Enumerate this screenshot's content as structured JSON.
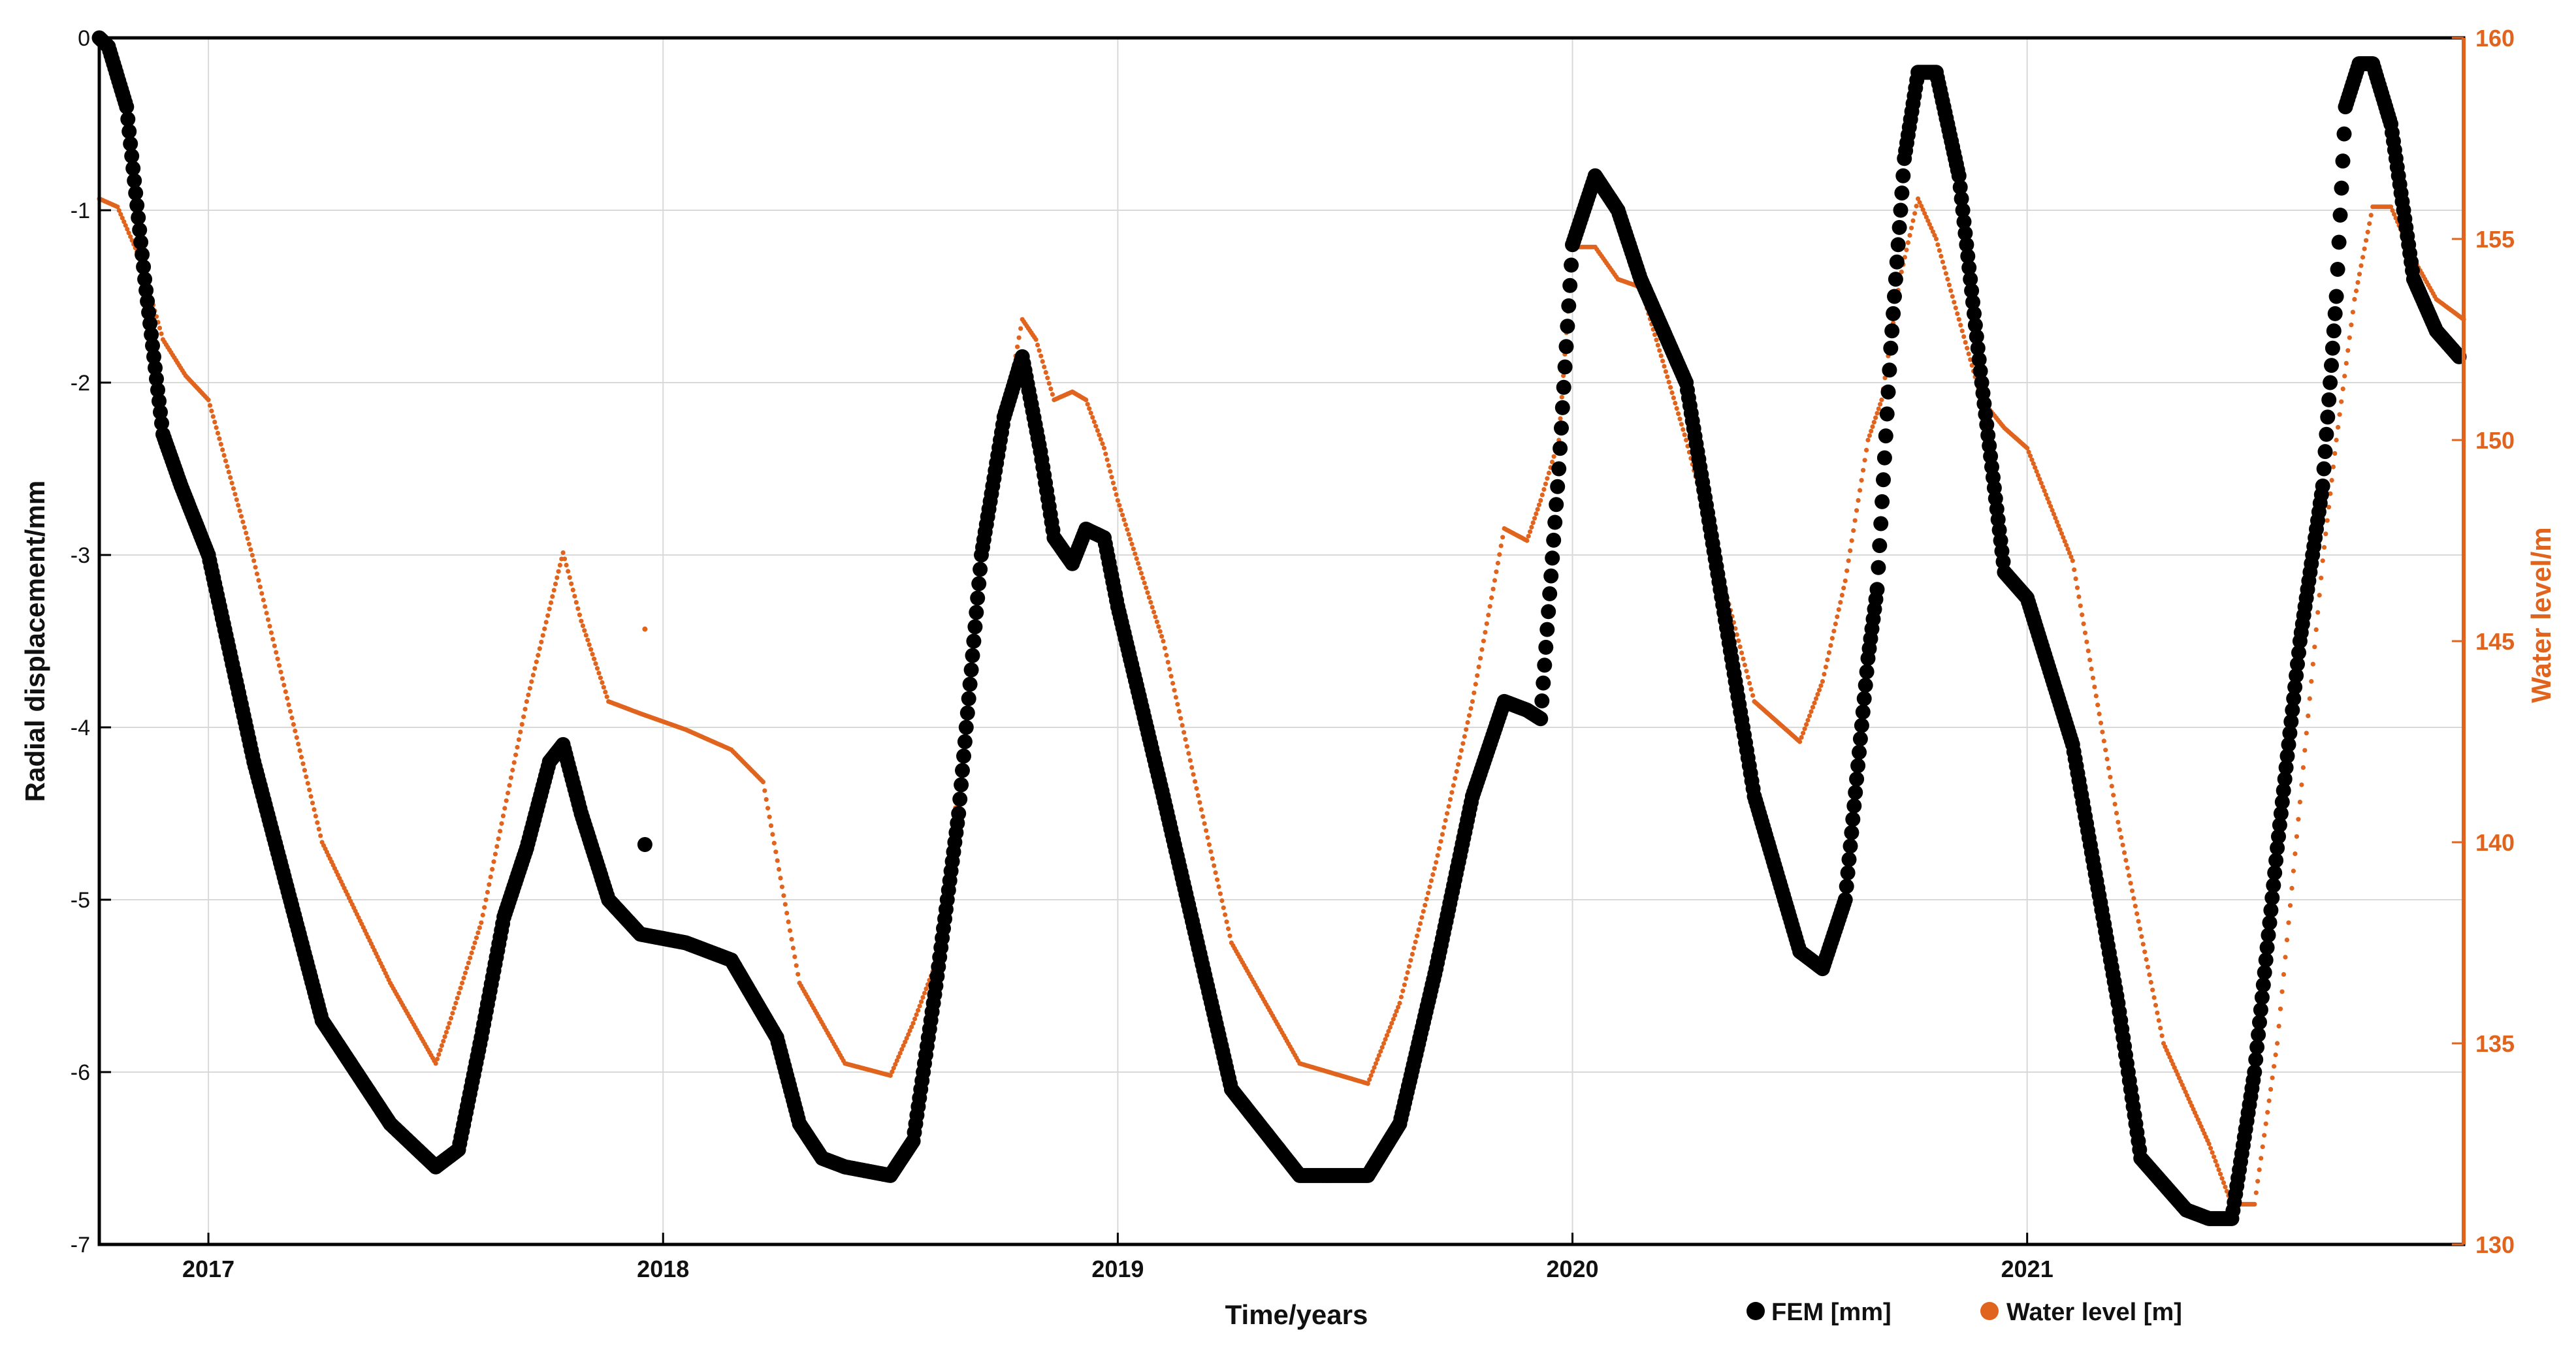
{
  "chart_data": {
    "type": "scatter",
    "title": "",
    "xlabel": "Time/years",
    "ylabel": "Radial displacement/mm",
    "ylabel_right": "Water level/m",
    "xlim": [
      2016.76,
      2021.96
    ],
    "ylim": [
      -7,
      0
    ],
    "ylim_right": [
      130,
      160
    ],
    "x_ticks": [
      2017,
      2018,
      2019,
      2020,
      2021
    ],
    "x_tick_labels": [
      "2017",
      "2018",
      "2019",
      "2020",
      "2021"
    ],
    "y_ticks": [
      0,
      -1,
      -2,
      -3,
      -4,
      -5,
      -6,
      -7
    ],
    "y_tick_labels": [
      "0",
      "-1",
      "-2",
      "-3",
      "-4",
      "-5",
      "-6",
      "-7"
    ],
    "y_right_ticks": [
      160,
      155,
      150,
      145,
      140,
      135,
      130
    ],
    "y_right_tick_labels": [
      "160",
      "155",
      "150",
      "145",
      "140",
      "135",
      "130"
    ],
    "grid": true,
    "legend_position": "bottom-right",
    "colors": {
      "fem": "#000000",
      "water": "#e0641e",
      "axis": "#000000",
      "grid": "#d9d9d9"
    },
    "series": [
      {
        "name": "FEM [mm]",
        "axis": "left",
        "marker": "large-dot",
        "x": [
          2016.76,
          2016.78,
          2016.82,
          2016.86,
          2016.9,
          2016.94,
          2017.0,
          2017.1,
          2017.25,
          2017.4,
          2017.5,
          2017.55,
          2017.6,
          2017.65,
          2017.7,
          2017.75,
          2017.78,
          2017.82,
          2017.88,
          2017.95,
          2018.05,
          2018.15,
          2018.25,
          2018.3,
          2018.35,
          2018.4,
          2018.5,
          2018.55,
          2018.6,
          2018.65,
          2018.7,
          2018.75,
          2018.79,
          2018.83,
          2018.86,
          2018.9,
          2018.93,
          2018.97,
          2019.0,
          2019.1,
          2019.25,
          2019.4,
          2019.55,
          2019.62,
          2019.7,
          2019.78,
          2019.85,
          2019.9,
          2019.93,
          2019.97,
          2020.0,
          2020.05,
          2020.1,
          2020.15,
          2020.25,
          2020.4,
          2020.5,
          2020.55,
          2020.6,
          2020.65,
          2020.67,
          2020.7,
          2020.73,
          2020.76,
          2020.8,
          2020.85,
          2020.9,
          2020.95,
          2021.0,
          2021.1,
          2021.2,
          2021.25,
          2021.35,
          2021.4,
          2021.45,
          2021.5,
          2021.55,
          2021.6,
          2021.65,
          2021.68,
          2021.7,
          2021.73,
          2021.76,
          2021.8,
          2021.85,
          2021.9,
          2021.95
        ],
        "y": [
          0.0,
          -0.05,
          -0.4,
          -1.4,
          -2.3,
          -2.6,
          -3.0,
          -4.2,
          -5.7,
          -6.3,
          -6.55,
          -6.45,
          -5.8,
          -5.1,
          -4.7,
          -4.2,
          -4.1,
          -4.5,
          -5.0,
          -5.2,
          -5.25,
          -5.35,
          -5.8,
          -6.3,
          -6.5,
          -6.55,
          -6.6,
          -6.4,
          -5.5,
          -4.5,
          -3.0,
          -2.2,
          -1.85,
          -2.4,
          -2.9,
          -3.05,
          -2.85,
          -2.9,
          -3.3,
          -4.4,
          -6.1,
          -6.6,
          -6.6,
          -6.3,
          -5.4,
          -4.4,
          -3.85,
          -3.9,
          -3.95,
          -2.5,
          -1.2,
          -0.8,
          -1.0,
          -1.4,
          -2.0,
          -4.4,
          -5.3,
          -5.4,
          -5.0,
          -3.6,
          -3.2,
          -1.8,
          -0.7,
          -0.2,
          -0.2,
          -0.8,
          -2.0,
          -3.1,
          -3.25,
          -4.1,
          -5.6,
          -6.5,
          -6.8,
          -6.85,
          -6.85,
          -6.0,
          -4.7,
          -3.5,
          -2.6,
          -1.5,
          -0.4,
          -0.15,
          -0.15,
          -0.5,
          -1.4,
          -1.7,
          -1.85
        ]
      },
      {
        "name": "Water level [m]",
        "axis": "right",
        "marker": "small-dot",
        "x": [
          2016.76,
          2016.8,
          2016.85,
          2016.9,
          2016.95,
          2017.0,
          2017.1,
          2017.25,
          2017.4,
          2017.5,
          2017.53,
          2017.6,
          2017.7,
          2017.75,
          2017.78,
          2017.82,
          2017.88,
          2017.95,
          2018.05,
          2018.15,
          2018.22,
          2018.3,
          2018.4,
          2018.5,
          2018.55,
          2018.6,
          2018.65,
          2018.7,
          2018.75,
          2018.79,
          2018.82,
          2018.86,
          2018.9,
          2018.93,
          2018.97,
          2019.0,
          2019.1,
          2019.25,
          2019.4,
          2019.55,
          2019.62,
          2019.7,
          2019.78,
          2019.85,
          2019.9,
          2019.93,
          2019.97,
          2020.0,
          2020.05,
          2020.1,
          2020.15,
          2020.25,
          2020.4,
          2020.5,
          2020.55,
          2020.6,
          2020.65,
          2020.68,
          2020.72,
          2020.76,
          2020.8,
          2020.85,
          2020.9,
          2020.95,
          2021.0,
          2021.1,
          2021.2,
          2021.3,
          2021.4,
          2021.45,
          2021.5,
          2021.55,
          2021.6,
          2021.65,
          2021.68,
          2021.72,
          2021.76,
          2021.8,
          2021.85,
          2021.9,
          2021.96
        ],
        "y": [
          156.0,
          155.8,
          154.5,
          152.5,
          151.6,
          151.0,
          147.0,
          140.0,
          136.5,
          134.5,
          135.5,
          138.0,
          143.5,
          145.8,
          147.2,
          145.5,
          143.5,
          143.2,
          142.8,
          142.3,
          141.5,
          136.5,
          134.5,
          134.2,
          135.5,
          137.0,
          141.5,
          146.5,
          150.5,
          153.0,
          152.5,
          151.0,
          151.2,
          151.0,
          149.8,
          148.5,
          145.0,
          137.5,
          134.5,
          134.0,
          136.0,
          139.5,
          143.5,
          147.8,
          147.5,
          148.5,
          150.0,
          154.8,
          154.8,
          154.0,
          153.8,
          150.0,
          143.5,
          142.5,
          144.0,
          146.5,
          150.0,
          151.0,
          154.0,
          156.0,
          155.0,
          153.0,
          151.0,
          150.3,
          149.8,
          147.0,
          140.5,
          135.0,
          132.5,
          131.0,
          131.0,
          135.0,
          141.0,
          147.0,
          150.0,
          153.5,
          155.8,
          155.8,
          154.5,
          153.5,
          153.0
        ]
      }
    ],
    "outliers": [
      {
        "series": "FEM [mm]",
        "x": 2017.96,
        "y": -4.68
      },
      {
        "series": "Water level [m]",
        "x": 2017.96,
        "y": 145.3
      }
    ]
  }
}
